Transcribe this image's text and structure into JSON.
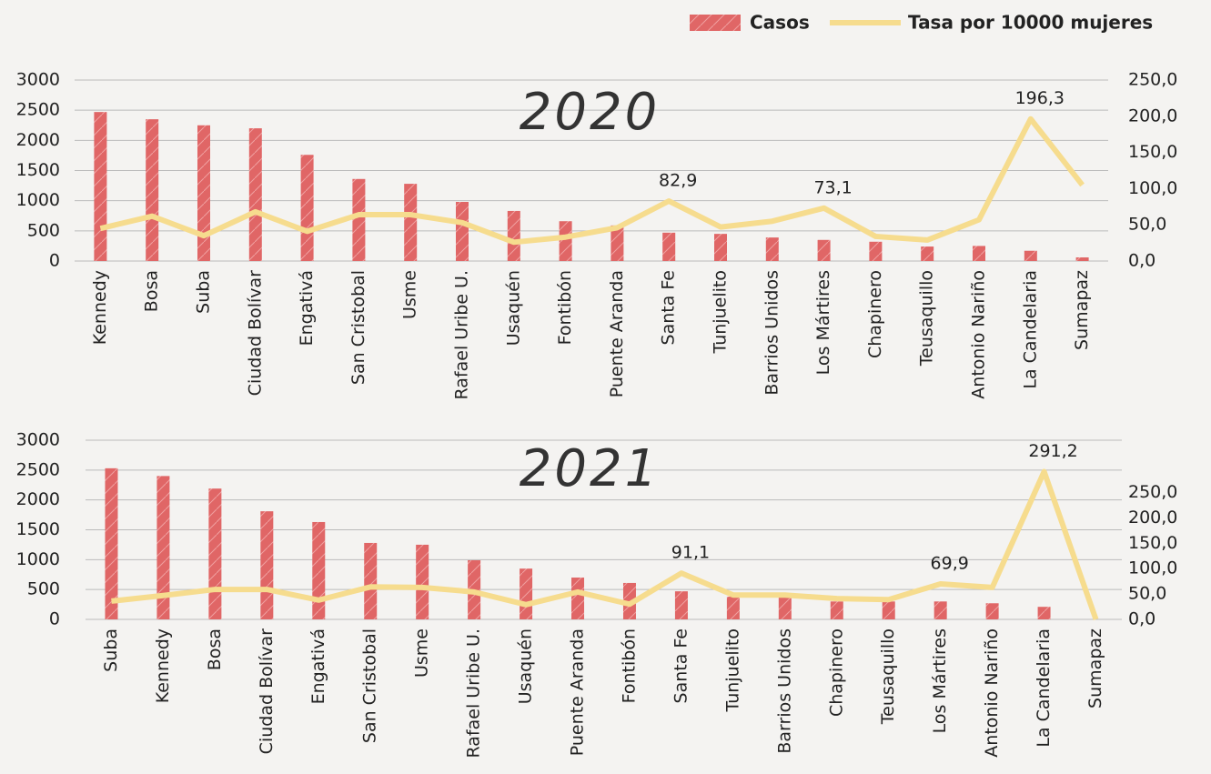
{
  "legend_position": "top-right",
  "chart_data": [
    {
      "type": "bar",
      "title": "2020",
      "categories": [
        "Kennedy",
        "Bosa",
        "Suba",
        "Ciudad Bolívar",
        "Engativá",
        "San Cristobal",
        "Usme",
        "Rafael Uribe U.",
        "Usaquén",
        "Fontibón",
        "Puente Aranda",
        "Santa Fe",
        "Tunjuelito",
        "Barrios Unidos",
        "Los Mártires",
        "Chapinero",
        "Teusaquillo",
        "Antonio Nariño",
        "La Candelaria",
        "Sumapaz"
      ],
      "series": [
        {
          "name": "Casos",
          "type": "bar",
          "color": "#e06666",
          "values": [
            2470,
            2350,
            2250,
            2200,
            1760,
            1360,
            1280,
            980,
            830,
            660,
            590,
            470,
            450,
            390,
            350,
            320,
            240,
            250,
            170,
            60
          ]
        },
        {
          "name": "Tasa por 10000 mujeres",
          "type": "line",
          "axis": "y2",
          "color": "#f6dc8e",
          "values": [
            45,
            62,
            35,
            68,
            41,
            64,
            64,
            53,
            26,
            33,
            46,
            82.9,
            47,
            55,
            73.1,
            34,
            29,
            57,
            196.3,
            105
          ],
          "value_labels": [
            null,
            null,
            null,
            null,
            null,
            null,
            null,
            null,
            null,
            null,
            null,
            "82,9",
            null,
            null,
            "73,1",
            null,
            null,
            null,
            "196,3",
            null
          ]
        }
      ],
      "ylim": [
        0,
        3000
      ],
      "yticks": [
        0,
        500,
        1000,
        1500,
        2000,
        2500,
        3000
      ],
      "y2lim": [
        0,
        250
      ],
      "y2ticks": [
        {
          "value": 0,
          "label": "0,0"
        },
        {
          "value": 50,
          "label": "50,0"
        },
        {
          "value": 100,
          "label": "100,0"
        },
        {
          "value": 150,
          "label": "150,0"
        },
        {
          "value": 200,
          "label": "200,0"
        },
        {
          "value": 250,
          "label": "250,0"
        }
      ],
      "grid": true
    },
    {
      "type": "bar",
      "title": "2021",
      "categories": [
        "Suba",
        "Kennedy",
        "Bosa",
        "Ciudad Bolívar",
        "Engativá",
        "San Cristobal",
        "Usme",
        "Rafael Uribe U.",
        "Usaquén",
        "Puente Aranda",
        "Fontibón",
        "Santa Fe",
        "Tunjuelito",
        "Barrios Unidos",
        "Chapinero",
        "Teusaquillo",
        "Los  Mártires",
        "Antonio Nariño",
        "La Candelaria",
        "Sumapaz"
      ],
      "series": [
        {
          "type": "bar",
          "color": "#e06666",
          "values": [
            2530,
            2400,
            2190,
            1810,
            1630,
            1280,
            1250,
            990,
            850,
            700,
            610,
            470,
            380,
            370,
            300,
            300,
            300,
            270,
            210,
            0
          ]
        },
        {
          "type": "line",
          "axis": "y2",
          "color": "#f6dc8e",
          "values": [
            36,
            47,
            59,
            59,
            38,
            64,
            63,
            54,
            29,
            54,
            30,
            91.1,
            48,
            48,
            41,
            39,
            69.9,
            63,
            291.2,
            0
          ],
          "value_labels": [
            null,
            null,
            null,
            null,
            null,
            null,
            null,
            null,
            null,
            null,
            null,
            "91,1",
            null,
            null,
            null,
            null,
            "69,9",
            null,
            "291,2",
            null
          ]
        }
      ],
      "ylim": [
        0,
        3000
      ],
      "yticks": [
        0,
        500,
        1000,
        1500,
        2000,
        2500,
        3000
      ],
      "y2lim": [
        0,
        353
      ],
      "y2ticks": [
        {
          "value": 0,
          "label": "0,0"
        },
        {
          "value": 50,
          "label": "50,0"
        },
        {
          "value": 100,
          "label": "100,0"
        },
        {
          "value": 150,
          "label": "150,0"
        },
        {
          "value": 200,
          "label": "200,0"
        },
        {
          "value": 250,
          "label": "250,0"
        }
      ],
      "grid": true
    }
  ]
}
